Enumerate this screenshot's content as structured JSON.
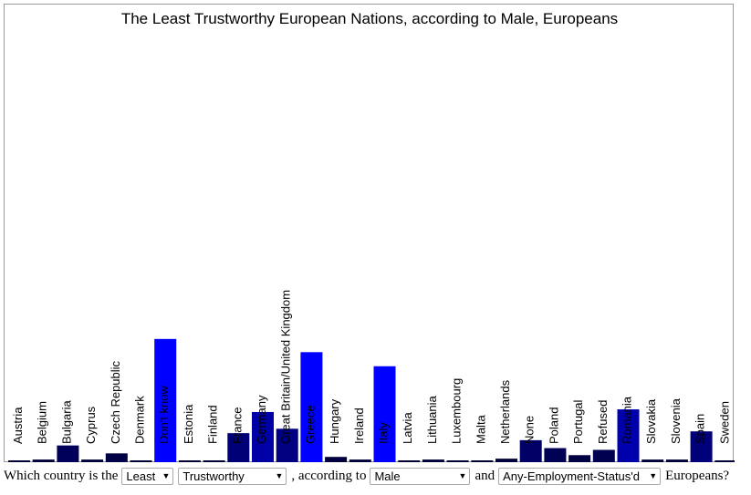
{
  "chart_data": {
    "type": "bar",
    "title": "The Least Trustworthy European Nations, according to Male, Europeans",
    "categories": [
      "Austria",
      "Belgium",
      "Bulgaria",
      "Cyprus",
      "Czech Republic",
      "Denmark",
      "Don't know",
      "Estonia",
      "Finland",
      "France",
      "Germany",
      "Great Britain/United Kingdom",
      "Greece",
      "Hungary",
      "Ireland",
      "Italy",
      "Latvia",
      "Lithuania",
      "Luxembourg",
      "Malta",
      "Netherlands",
      "None",
      "Poland",
      "Portugal",
      "Refused",
      "Romania",
      "Slovakia",
      "Slovenia",
      "Spain",
      "Sweden"
    ],
    "values": [
      1,
      3,
      19,
      3,
      10,
      2,
      140,
      2,
      2,
      33,
      57,
      38,
      125,
      6,
      3,
      109,
      1,
      3,
      1,
      1,
      4,
      25,
      16,
      8,
      14,
      60,
      3,
      3,
      35,
      2
    ],
    "ylim": [
      0,
      145
    ],
    "colors": {
      "low": "#000033",
      "high": "#0000ff"
    }
  },
  "question": {
    "prefix": "Which country is the",
    "least": "Least",
    "trust": "Trustworthy",
    "middle": ", according to",
    "gender": "Male",
    "and": "and",
    "employment": "Any-Employment-Status'd",
    "suffix": "Europeans?",
    "arrow": "▼"
  }
}
